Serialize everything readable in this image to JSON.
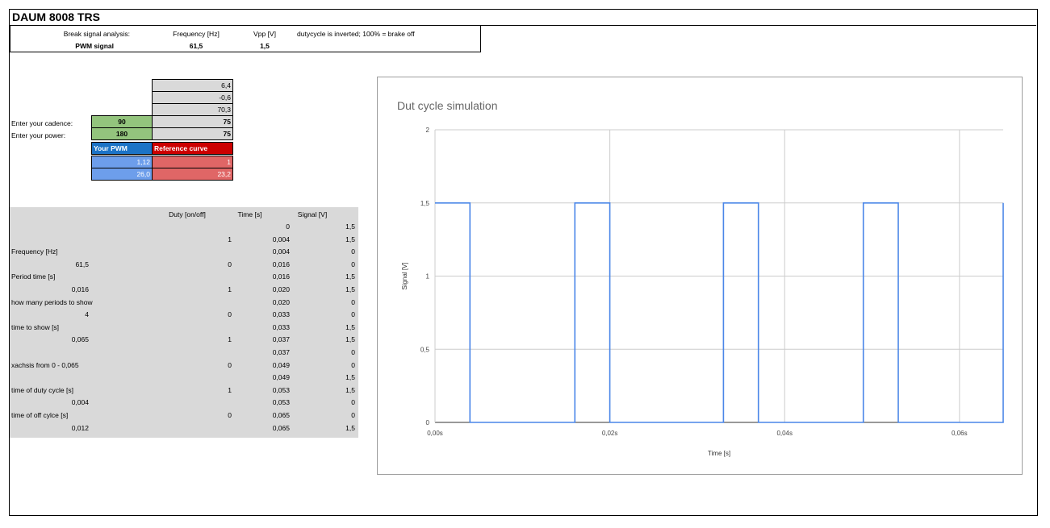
{
  "sheet": {
    "title": "DAUM 8008 TRS",
    "header": {
      "break_label": "Break signal analysis:",
      "freq_label": "Frequency [Hz]",
      "vpp_label": "Vpp [V]",
      "note": "dutycycle is inverted; 100% = brake off",
      "pwm_label": "PWM signal",
      "freq_value": "61,5",
      "vpp_value": "1,5"
    },
    "calc": {
      "coef1": "6,4",
      "coef2": "-0,6",
      "coef3": "70,3",
      "cadence_label": "Enter your cadence:",
      "cadence_value": "90",
      "cadence_ref": "75",
      "power_label": "Enter your power:",
      "power_value": "180",
      "power_ref": "75",
      "your_pwm_label": "Your PWM",
      "ref_curve_label": "Reference curve",
      "pwm_row1": "1,12",
      "ref_row1": "1",
      "pwm_row2": "26,0",
      "ref_row2": "23,2"
    },
    "table": {
      "col_duty": "Duty [on/off]",
      "col_time": "Time [s]",
      "col_signal": "Signal [V]",
      "rows": [
        {
          "label": "",
          "value": "",
          "duty": "",
          "time": "0",
          "signal": "1,5"
        },
        {
          "label": "",
          "value": "",
          "duty": "1",
          "time": "0,004",
          "signal": "1,5"
        },
        {
          "label": "Frequency [Hz]",
          "value": "",
          "duty": "",
          "time": "0,004",
          "signal": "0"
        },
        {
          "label": "",
          "value": "61,5",
          "duty": "0",
          "time": "0,016",
          "signal": "0"
        },
        {
          "label": "Period time [s]",
          "value": "",
          "duty": "",
          "time": "0,016",
          "signal": "1,5"
        },
        {
          "label": "",
          "value": "0,016",
          "duty": "1",
          "time": "0,020",
          "signal": "1,5"
        },
        {
          "label": "how many periods to show",
          "value": "",
          "duty": "",
          "time": "0,020",
          "signal": "0"
        },
        {
          "label": "",
          "value": "4",
          "duty": "0",
          "time": "0,033",
          "signal": "0"
        },
        {
          "label": "time to show [s]",
          "value": "",
          "duty": "",
          "time": "0,033",
          "signal": "1,5"
        },
        {
          "label": "",
          "value": "0,065",
          "duty": "1",
          "time": "0,037",
          "signal": "1,5"
        },
        {
          "label": "",
          "value": "",
          "duty": "",
          "time": "0,037",
          "signal": "0"
        },
        {
          "label": "xachsis from 0 - 0,065",
          "value": "",
          "duty": "0",
          "time": "0,049",
          "signal": "0"
        },
        {
          "label": "",
          "value": "",
          "duty": "",
          "time": "0,049",
          "signal": "1,5"
        },
        {
          "label": "time of duty cycle [s]",
          "value": "",
          "duty": "1",
          "time": "0,053",
          "signal": "1,5"
        },
        {
          "label": "",
          "value": "0,004",
          "duty": "",
          "time": "0,053",
          "signal": "0"
        },
        {
          "label": "time of off cylce [s]",
          "value": "",
          "duty": "0",
          "time": "0,065",
          "signal": "0"
        },
        {
          "label": "",
          "value": "0,012",
          "duty": "",
          "time": "0,065",
          "signal": "1,5"
        }
      ]
    }
  },
  "chart_data": {
    "type": "line",
    "title": "Dut cycle simulation",
    "xlabel": "Time [s]",
    "ylabel": "Signal [V]",
    "xlim": [
      0,
      0.065
    ],
    "ylim": [
      0,
      2
    ],
    "x_ticks": [
      0,
      0.02,
      0.04,
      0.06
    ],
    "x_tick_labels": [
      "0,00s",
      "0,02s",
      "0,04s",
      "0,06s"
    ],
    "y_ticks": [
      0,
      0.5,
      1,
      1.5,
      2
    ],
    "y_tick_labels": [
      "0",
      "0,5",
      "1",
      "1,5",
      "2"
    ],
    "grid": true,
    "color": "#4a86e8",
    "x": [
      0,
      0.004,
      0.004,
      0.016,
      0.016,
      0.02,
      0.02,
      0.033,
      0.033,
      0.037,
      0.037,
      0.049,
      0.049,
      0.053,
      0.053,
      0.065,
      0.065
    ],
    "y": [
      1.5,
      1.5,
      0,
      0,
      1.5,
      1.5,
      0,
      0,
      1.5,
      1.5,
      0,
      0,
      1.5,
      1.5,
      0,
      0,
      1.5
    ]
  }
}
